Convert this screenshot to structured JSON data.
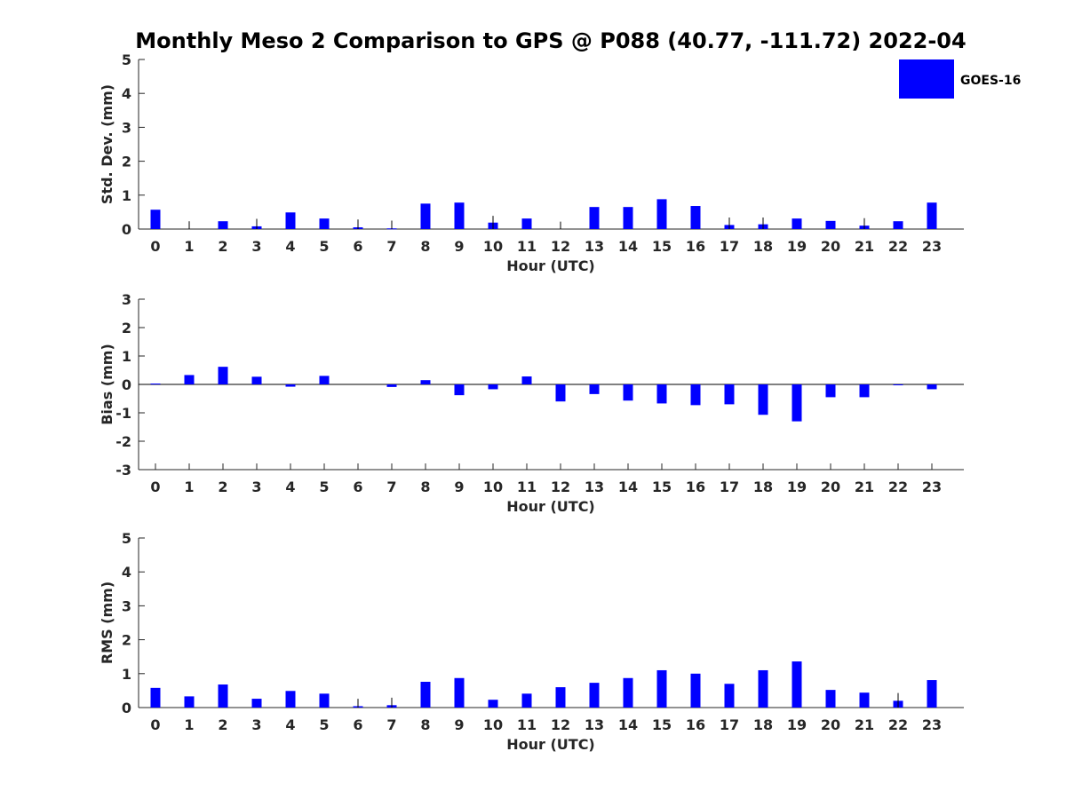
{
  "title": "Monthly Meso 2 Comparison to GPS @ P088 (40.77, -111.72) 2022-04",
  "legend": {
    "label": "GOES-16",
    "color": "#0000ff",
    "placement": "top-right"
  },
  "chart_data": [
    {
      "type": "bar",
      "xlabel": "Hour (UTC)",
      "ylabel": "Std. Dev. (mm)",
      "ylim": [
        0,
        5
      ],
      "yticks": [
        "0",
        "1",
        "2",
        "3",
        "4",
        "5"
      ],
      "categories": [
        "0",
        "1",
        "2",
        "3",
        "4",
        "5",
        "6",
        "7",
        "8",
        "9",
        "10",
        "11",
        "12",
        "13",
        "14",
        "15",
        "16",
        "17",
        "18",
        "19",
        "20",
        "21",
        "22",
        "23"
      ],
      "series": [
        {
          "name": "GOES-16",
          "values": [
            0.57,
            0,
            0.23,
            0.08,
            0.49,
            0.31,
            0.05,
            0.02,
            0.75,
            0.78,
            0.19,
            0.31,
            0,
            0.65,
            0.65,
            0.88,
            0.68,
            0.12,
            0.14,
            0.31,
            0.24,
            0.1,
            0.23,
            0.78
          ]
        }
      ],
      "errorbars": [
        0,
        0.23,
        0,
        0.22,
        0,
        0,
        0.23,
        0.23,
        0,
        0,
        0.2,
        0,
        0.22,
        0,
        0,
        0,
        0,
        0.22,
        0.2,
        0,
        0,
        0.22,
        0,
        0
      ]
    },
    {
      "type": "bar",
      "xlabel": "Hour (UTC)",
      "ylabel": "Bias (mm)",
      "ylim": [
        -3,
        3
      ],
      "yticks": [
        "-3",
        "-2",
        "-1",
        "0",
        "1",
        "2",
        "3"
      ],
      "zero_line": true,
      "categories": [
        "0",
        "1",
        "2",
        "3",
        "4",
        "5",
        "6",
        "7",
        "8",
        "9",
        "10",
        "11",
        "12",
        "13",
        "14",
        "15",
        "16",
        "17",
        "18",
        "19",
        "20",
        "21",
        "22",
        "23"
      ],
      "series": [
        {
          "name": "GOES-16",
          "values": [
            0.03,
            0.33,
            0.62,
            0.27,
            -0.08,
            0.3,
            0,
            -0.09,
            0.15,
            -0.38,
            -0.17,
            0.28,
            -0.6,
            -0.34,
            -0.57,
            -0.67,
            -0.73,
            -0.7,
            -1.07,
            -1.3,
            -0.45,
            -0.45,
            -0.02,
            -0.17
          ]
        }
      ]
    },
    {
      "type": "bar",
      "xlabel": "Hour (UTC)",
      "ylabel": "RMS (mm)",
      "ylim": [
        0,
        5
      ],
      "yticks": [
        "0",
        "1",
        "2",
        "3",
        "4",
        "5"
      ],
      "categories": [
        "0",
        "1",
        "2",
        "3",
        "4",
        "5",
        "6",
        "7",
        "8",
        "9",
        "10",
        "11",
        "12",
        "13",
        "14",
        "15",
        "16",
        "17",
        "18",
        "19",
        "20",
        "21",
        "22",
        "23"
      ],
      "series": [
        {
          "name": "GOES-16",
          "values": [
            0.58,
            0.33,
            0.68,
            0.26,
            0.49,
            0.41,
            0.04,
            0.07,
            0.76,
            0.87,
            0.23,
            0.41,
            0.6,
            0.73,
            0.87,
            1.1,
            1.0,
            0.7,
            1.1,
            1.36,
            0.52,
            0.44,
            0.2,
            0.81
          ]
        }
      ],
      "errorbars": [
        0,
        0,
        0,
        0,
        0,
        0,
        0.22,
        0.22,
        0,
        0,
        0,
        0,
        0,
        0,
        0,
        0,
        0,
        0,
        0,
        0,
        0,
        0,
        0.23,
        0
      ]
    }
  ]
}
